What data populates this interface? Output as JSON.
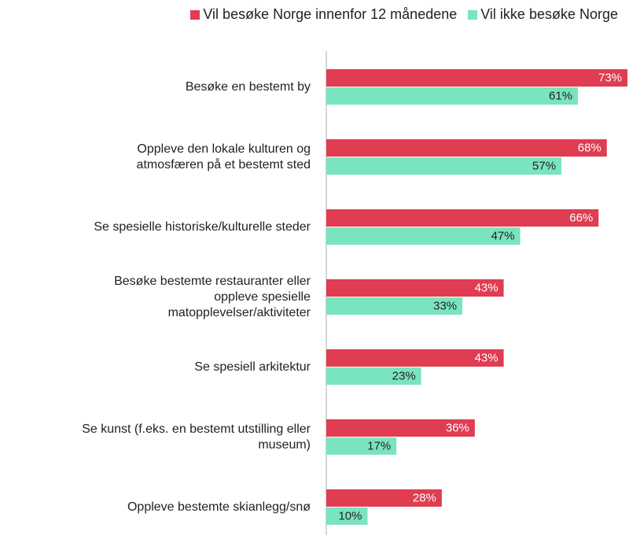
{
  "chart_data": {
    "type": "bar",
    "orientation": "horizontal",
    "categories": [
      "Besøke en bestemt by",
      "Oppleve den lokale kulturen og\natmosfæren på et bestemt sted",
      "Se spesielle historiske/kulturelle steder",
      "Besøke bestemte restauranter eller\noppleve spesielle\nmatopplevelser/aktiviteter",
      "Se spesiell arkitektur",
      "Se kunst (f.eks. en bestemt utstilling eller\nmuseum)",
      "Oppleve bestemte skianlegg/snø"
    ],
    "series": [
      {
        "name": "Vil besøke Norge innenfor 12 månedene",
        "color": "#e03c52",
        "label_color": "#ffffff",
        "values": [
          73,
          68,
          66,
          43,
          43,
          36,
          28
        ],
        "value_labels": [
          "73%",
          "68%",
          "66%",
          "43%",
          "43%",
          "36%",
          "28%"
        ]
      },
      {
        "name": "Vil ikke besøke Norge",
        "color": "#7ae3c0",
        "label_color": "#222222",
        "values": [
          61,
          57,
          47,
          33,
          23,
          17,
          10
        ],
        "value_labels": [
          "61%",
          "57%",
          "47%",
          "33%",
          "23%",
          "17%",
          "10%"
        ]
      }
    ],
    "legend": "top-right"
  }
}
